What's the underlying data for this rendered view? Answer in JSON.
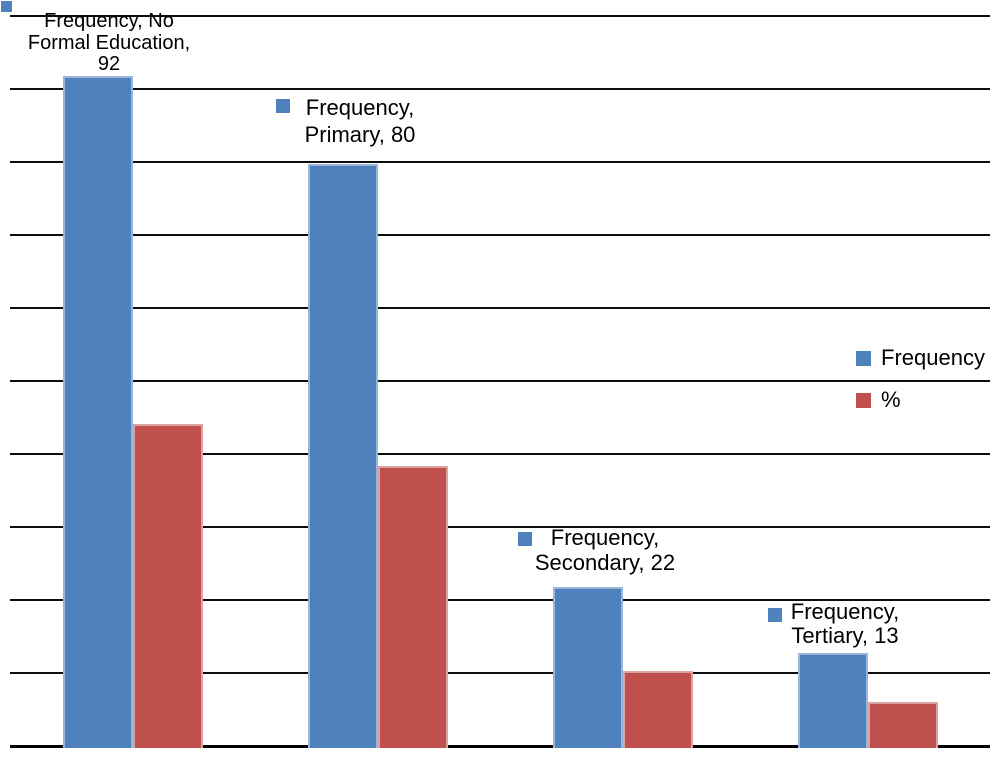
{
  "chart_data": {
    "type": "bar",
    "title": "",
    "xlabel": "",
    "ylabel": "",
    "categories": [
      "No Formal Education",
      "Primary",
      "Secondary",
      "Tertiary"
    ],
    "series": [
      {
        "name": "Frequency",
        "color": "#4f81bd",
        "edge_color": "#9ab5d9",
        "values": [
          92,
          80,
          22,
          13
        ]
      },
      {
        "name": "%",
        "color": "#c0504d",
        "edge_color": "#dba3a1",
        "values": [
          44.4,
          38.6,
          10.6,
          6.3
        ]
      }
    ],
    "ylim": [
      0,
      100
    ],
    "gridline_step": 10,
    "gridline_count": 11,
    "grid": true,
    "axis_tick_labels_visible": false,
    "legend_position": "right",
    "legend_entries": [
      "Frequency",
      "%"
    ],
    "data_labels": [
      {
        "series": "Frequency",
        "category": "No Formal Education",
        "value": 92,
        "lines": [
          "Frequency, No",
          "Formal Education,",
          "92"
        ]
      },
      {
        "series": "Frequency",
        "category": "Primary",
        "value": 80,
        "lines": [
          "Frequency,",
          "Primary, 80"
        ]
      },
      {
        "series": "Frequency",
        "category": "Secondary",
        "value": 22,
        "lines": [
          "Frequency,",
          "Secondary, 22"
        ]
      },
      {
        "series": "Frequency",
        "category": "Tertiary",
        "value": 13,
        "lines": [
          "Frequency,",
          "Tertiary, 13"
        ]
      }
    ],
    "colors": {
      "gridline": "#0d0d0d",
      "text": "#000000",
      "background": "#ffffff"
    }
  }
}
